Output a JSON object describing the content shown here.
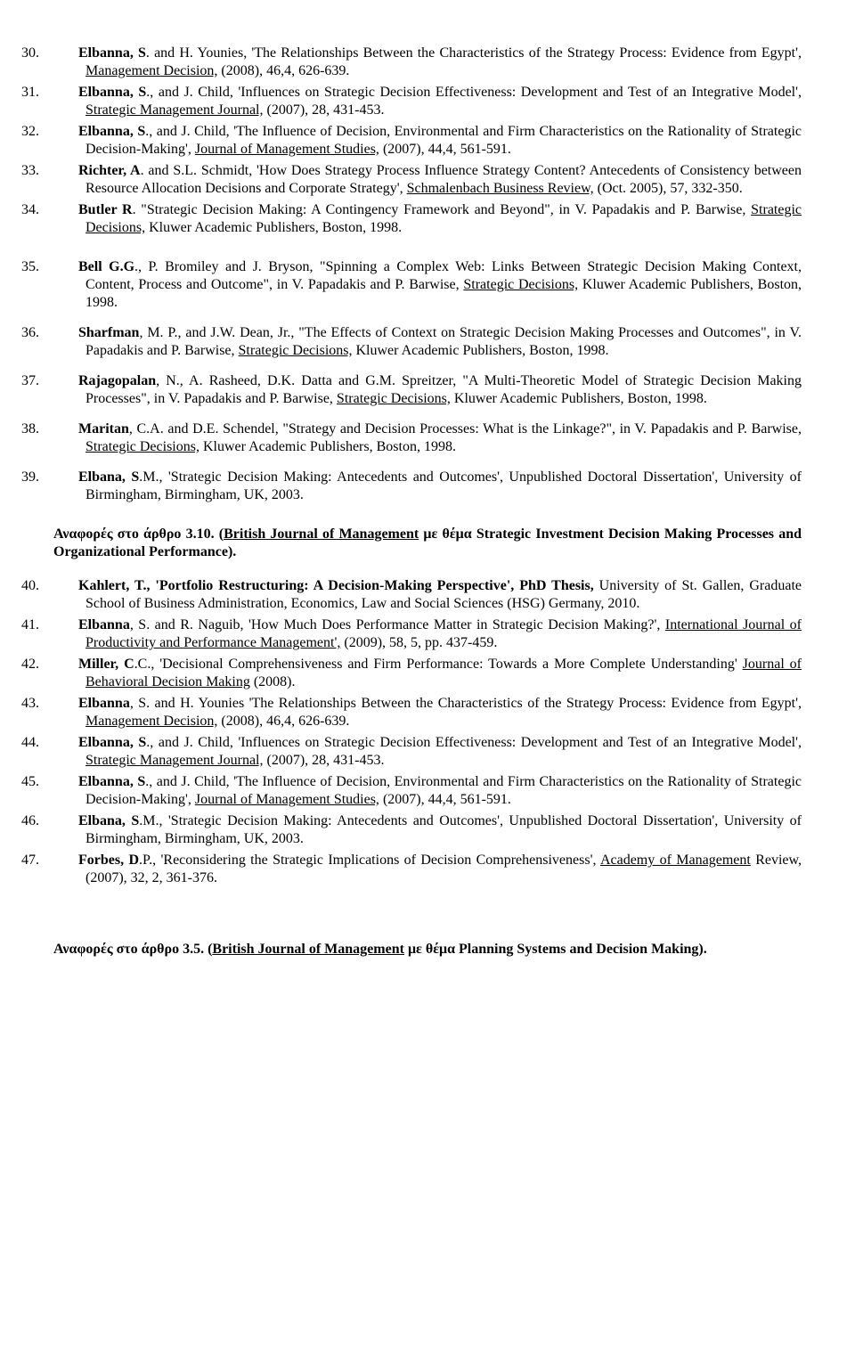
{
  "refs_a": [
    {
      "n": "30.",
      "pre": "",
      "auth": "Elbanna, S",
      "post": ". and H. Younies, 'The Relationships Between the Characteristics of the Strategy Process: Evidence from Egypt', ",
      "journal": "Management Decision,",
      "tail": " (2008), 46,4, 626-639."
    },
    {
      "n": "31.",
      "pre": "",
      "auth": "Elbanna, S",
      "post": "., and J. Child, 'Influences on Strategic Decision Effectiveness: Development and Test of an Integrative Model', ",
      "journal": "Strategic Management Journal,",
      "tail": " (2007), 28, 431-453."
    },
    {
      "n": "32.",
      "pre": "",
      "auth": "Elbanna, S",
      "post": "., and J. Child, 'The Influence of Decision, Environmental and Firm Characteristics on the Rationality of Strategic Decision-Making', ",
      "journal": "Journal of Management Studies,",
      "tail": " (2007), 44,4, 561-591."
    },
    {
      "n": "33.",
      "pre": "",
      "auth": "Richter, A",
      "post": ". and S.L. Schmidt, 'How Does Strategy Process Influence Strategy Content? Antecedents of Consistency between Resource Allocation Decisions and Corporate Strategy', ",
      "journal": "Schmalenbach Business Review,",
      "tail": " (Oct. 2005), 57, 332-350."
    },
    {
      "n": "34.",
      "pre": "",
      "auth": "Butler R",
      "post": ". \"Strategic Decision Making: A Contingency Framework and Beyond\", in V. Papadakis and P. Barwise, ",
      "journal": "Strategic Decisions,",
      "tail": " Kluwer Academic Publishers, Boston, 1998."
    }
  ],
  "refs_a2": [
    {
      "n": "35.",
      "pre": "",
      "auth": "Bell G.G",
      "post": "., P. Bromiley and J. Bryson, \"Spinning a Complex Web: Links Between Strategic Decision Making Context, Content, Process and Outcome\", in V. Papadakis and P. Barwise, ",
      "journal": "Strategic Decisions,",
      "tail": " Kluwer Academic Publishers, Boston, 1998."
    },
    {
      "n": "36.",
      "pre": "",
      "auth": "Sharfman",
      "post": ", M. P., and J.W. Dean, Jr., \"The Effects of Context on Strategic Decision Making Processes and Outcomes\", in V. Papadakis and P. Barwise, ",
      "journal": "Strategic Decisions,",
      "tail": " Kluwer Academic Publishers, Boston, 1998."
    },
    {
      "n": "37.",
      "pre": "",
      "auth": "Rajagopalan",
      "post": ", N., A. Rasheed, D.K. Datta and G.M. Spreitzer, \"A Multi-Theoretic Model of Strategic Decision Making Processes\", in V. Papadakis and P. Barwise, ",
      "journal": "Strategic Decisions,",
      "tail": " Kluwer Academic Publishers, Boston, 1998."
    },
    {
      "n": "38.",
      "pre": "",
      "auth": "Maritan",
      "post": ", C.A. and D.E. Schendel, \"Strategy and Decision Processes: What is the Linkage?\", in V. Papadakis and P. Barwise, ",
      "journal": "Strategic Decisions,",
      "tail": " Kluwer Academic Publishers, Boston, 1998."
    },
    {
      "n": "39.",
      "pre": "",
      "auth": "Elbana, S",
      "post": ".M., 'Strategic Decision Making: Antecedents and Outcomes', Unpublished Doctoral Dissertation', University of Birmingham, Birmingham, UK, 2003.",
      "journal": "",
      "tail": ""
    }
  ],
  "heading1": {
    "pre": "Αναφορές στο άρθρο 3.10. (",
    "u": "British Journal of Management",
    "post": " με θέμα Strategic Investment Decision Making Processes and Organizational Performance)."
  },
  "refs_b": [
    {
      "n": "40.",
      "pre": "",
      "auth": "Kahlert, T., 'Portfolio Restructuring: A Decision-Making Perspective', PhD Thesis,",
      "post": " University of St. Gallen, Graduate School of Business Administration, Economics, Law and Social Sciences (HSG) Germany, 2010.",
      "journal": "",
      "tail": ""
    },
    {
      "n": "41.",
      "pre": "",
      "auth": "Elbanna",
      "post": ", S. and R. Naguib, 'How Much Does Performance Matter in Strategic Decision Making?', ",
      "journal": "International Journal of Productivity and Performance Management',",
      "tail": " (2009),  58, 5, pp. 437-459."
    },
    {
      "n": "42.",
      "pre": "",
      "auth": "Miller, C",
      "post": ".C., 'Decisional Comprehensiveness and Firm Performance: Towards a More Complete Understanding' ",
      "journal": "Journal of Behavioral Decision Making",
      "tail": " (2008)."
    },
    {
      "n": "43.",
      "pre": "",
      "auth": "Elbanna",
      "post": ", S. and H. Younies 'The Relationships Between the Characteristics of the Strategy Process: Evidence from Egypt', ",
      "journal": "Management Decision,",
      "tail": " (2008), 46,4, 626-639."
    },
    {
      "n": "44.",
      "pre": "",
      "auth": "Elbanna, S",
      "post": "., and J. Child, 'Influences on Strategic Decision Effectiveness: Development and Test of an Integrative Model', ",
      "journal": "Strategic Management Journal,",
      "tail": " (2007), 28, 431-453."
    },
    {
      "n": "45.",
      "pre": "",
      "auth": "Elbanna, S",
      "post": "., and J. Child, 'The Influence of Decision, Environmental and Firm Characteristics on the Rationality of Strategic Decision-Making', ",
      "journal": "Journal of Management Studies,",
      "tail": " (2007), 44,4, 561-591."
    },
    {
      "n": "46.",
      "pre": "",
      "auth": "Elbana, S",
      "post": ".M., 'Strategic Decision Making: Antecedents and Outcomes', Unpublished Doctoral Dissertation', University of Birmingham, Birmingham, UK, 2003.",
      "journal": "",
      "tail": ""
    },
    {
      "n": "47.",
      "pre": "",
      "auth": "Forbes, D",
      "post": ".P., 'Reconsidering the Strategic Implications of Decision Comprehensiveness', ",
      "journal": "Academy of Management",
      "tail": " Review, (2007), 32, 2, 361-376."
    }
  ],
  "heading2": {
    "pre": "Αναφορές στο άρθρο 3.5. (",
    "u": "British Journal of Management",
    "post": " με θέμα Planning Systems and Decision Making)."
  }
}
